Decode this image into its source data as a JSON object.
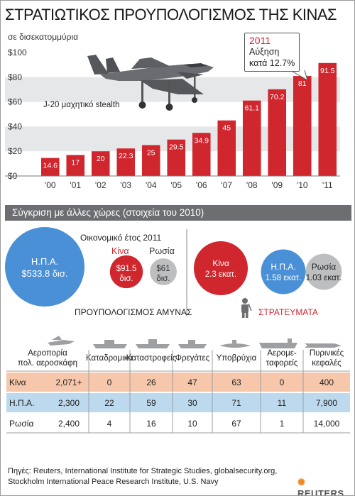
{
  "title": "ΣΤΡΑΤΙΩΤΙΚΟΣ ΠΡΟΥΠΟΛΟΓΙΣΜΟΣ ΤΗΣ ΚΙΝΑΣ",
  "unit_label": "σε δισεκατομμύρια",
  "jet_label": "J-20 μαχητικό stealth",
  "callout": {
    "year": "2011",
    "line1": "Αύξηση",
    "line2": "κατά 12.7%"
  },
  "colors": {
    "bar": "#d0262d",
    "band": "#6d6e71",
    "usa": "#4a90d6",
    "russia": "#bcbec0",
    "china_row": "#f7c7ab",
    "usa_row": "#bcd9ee"
  },
  "chart_data": {
    "type": "bar",
    "categories": [
      "'00",
      "'01",
      "'02",
      "'03",
      "'04",
      "'05",
      "'06",
      "'07",
      "'08",
      "'09",
      "'10",
      "'11"
    ],
    "values": [
      14.6,
      17,
      20,
      22.3,
      25,
      29.5,
      34.9,
      45,
      61.1,
      70.2,
      81,
      91.5
    ],
    "value_labels": [
      "14.6",
      "17",
      "20",
      "22.3",
      "25",
      "29.5",
      "34.9",
      "45",
      "61.1",
      "70.2",
      "81",
      "91.5"
    ],
    "ylim": [
      0,
      100
    ],
    "yticks": [
      0,
      20,
      40,
      60,
      80,
      100
    ],
    "ytick_labels": [
      "$0",
      "$20",
      "$40",
      "$60",
      "$80",
      "$100"
    ],
    "grid": "alternating bands"
  },
  "comparison": {
    "heading": "Σύγκριση με άλλες χώρες (στοιχεία του 2010)",
    "fiscal_year": "Οικονομικό έτος 2011",
    "china_header": "Κίνα",
    "russia_header": "Ρωσία",
    "budget_label": "ΠΡΟΥΠΟΛΟΓΙΣΜΟΣ ΑΜΥΝΑΣ",
    "troops_label": "ΣΤΡΑΤΕΥΜΑΤΑ",
    "budget": [
      {
        "country": "Η.Π.Α.",
        "value_text": "$533.8 δισ.",
        "value": 533.8
      },
      {
        "country": "Κίνα",
        "value_text": "$91.5 δισ.",
        "value": 91.5
      },
      {
        "country": "Ρωσία",
        "value_text": "$61 δισ.",
        "value": 61
      }
    ],
    "troops": [
      {
        "country": "Κίνα",
        "value_text": "2.3 εκατ.",
        "value": 2.3
      },
      {
        "country": "Η.Π.Α.",
        "value_text": "1.58 εκατ.",
        "value": 1.58
      },
      {
        "country": "Ρωσία",
        "value_text": "1.03 εκατ.",
        "value": 1.03
      }
    ]
  },
  "table": {
    "headers": [
      [
        "Αεροπορία",
        "πολ. αεροσκάφη"
      ],
      [
        "Καταδρομικά"
      ],
      [
        "Καταστροφείς"
      ],
      [
        "Φρεγάτες"
      ],
      [
        "Υποβρύχια"
      ],
      [
        "Αερομε-",
        "ταφορείς"
      ],
      [
        "Πυρινικές",
        "κεφαλές"
      ]
    ],
    "rows": [
      {
        "country": "Κίνα",
        "values": [
          "2,071+",
          "0",
          "26",
          "47",
          "63",
          "0",
          "400"
        ]
      },
      {
        "country": "Η.Π.Α.",
        "values": [
          "2,300",
          "22",
          "59",
          "30",
          "71",
          "11",
          "7,900"
        ]
      },
      {
        "country": "Ρωσία",
        "values": [
          "2,400",
          "4",
          "16",
          "10",
          "67",
          "1",
          "14,000"
        ]
      }
    ]
  },
  "source": {
    "line1": "Πηγές: Reuters, International Institute for Strategic Studies, globalsecurity.org,",
    "line2": "Stockholm International Peace Research Institute, U.S. Navy"
  },
  "brand": "REUTERS"
}
